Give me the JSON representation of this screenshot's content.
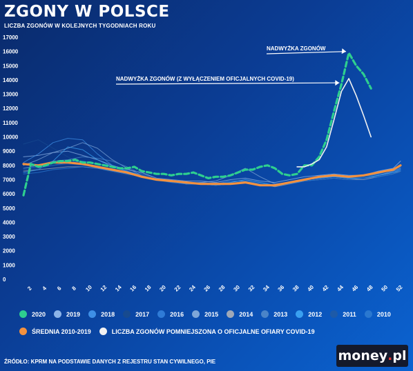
{
  "header": {
    "title": "ZGONY W POLSCE",
    "subtitle": "LICZBA ZGONÓW W KOLEJNYCH TYGODNIACH ROKU"
  },
  "source": "ŹRÓDŁO: KPRM NA PODSTAWIE DANYCH Z REJESTRU STAN CYWILNEGO, PIE",
  "logo": {
    "brand": "money",
    "dot": ".",
    "suffix": "pl"
  },
  "chart_data": {
    "type": "line",
    "ylim": [
      0,
      17000
    ],
    "yticks": [
      0,
      1000,
      2000,
      3000,
      4000,
      5000,
      6000,
      7000,
      8000,
      9000,
      10000,
      11000,
      12000,
      13000,
      14000,
      15000,
      16000,
      17000
    ],
    "xlim": [
      1,
      52
    ],
    "xticks": [
      2,
      4,
      6,
      8,
      10,
      12,
      14,
      16,
      18,
      20,
      22,
      24,
      26,
      28,
      30,
      32,
      34,
      36,
      38,
      40,
      42,
      44,
      46,
      48,
      50,
      52
    ],
    "annotations": [
      {
        "text": "NADWYŻKA ZGONÓW",
        "target_series": "2020",
        "target_week": 45
      },
      {
        "text": "NADWYŻKA ZGONÓW (Z WYŁĄCZENIEM OFICJALNYCH COVID-19)",
        "target_series": "LICZBA ZGONÓW POMNIEJSZONA O OFICJALNE OFIARY COVID-19",
        "target_week": 44
      }
    ],
    "series": [
      {
        "name": "2020",
        "style": "dashed",
        "color": "#2ecf8f",
        "x": [
          1,
          2,
          3,
          4,
          5,
          6,
          7,
          8,
          9,
          10,
          11,
          12,
          13,
          14,
          15,
          16,
          17,
          18,
          19,
          20,
          21,
          22,
          23,
          24,
          25,
          26,
          27,
          28,
          29,
          30,
          31,
          32,
          33,
          34,
          35,
          36,
          37,
          38,
          39,
          40,
          41,
          42,
          43,
          44,
          45,
          46,
          47,
          48
        ],
        "values": [
          5900,
          8100,
          7900,
          8000,
          8200,
          8300,
          8300,
          8400,
          8200,
          8200,
          8100,
          8000,
          7900,
          7800,
          7800,
          7900,
          7600,
          7500,
          7400,
          7400,
          7300,
          7400,
          7400,
          7500,
          7300,
          7100,
          7200,
          7200,
          7300,
          7500,
          7700,
          7700,
          7900,
          8000,
          7800,
          7400,
          7300,
          7400,
          8000,
          8000,
          8600,
          9800,
          11800,
          13700,
          15900,
          15000,
          14400,
          13400
        ]
      },
      {
        "name": "2019",
        "color": "#8cb4e8",
        "x": [
          1,
          3,
          5,
          7,
          9,
          11,
          13,
          15,
          17,
          19,
          21,
          23,
          25,
          27,
          29,
          31,
          33,
          35,
          37,
          39,
          41,
          43,
          45,
          47,
          49,
          51,
          52
        ],
        "values": [
          8600,
          8700,
          8900,
          9000,
          8700,
          8400,
          8000,
          7700,
          7500,
          7100,
          7000,
          6900,
          6900,
          6800,
          7000,
          7100,
          6900,
          6800,
          7000,
          7200,
          7300,
          7400,
          7300,
          7300,
          7600,
          7800,
          8300
        ]
      },
      {
        "name": "2018",
        "color": "#3e8fe6",
        "x": [
          1,
          3,
          5,
          7,
          9,
          11,
          13,
          15,
          17,
          19,
          21,
          23,
          25,
          27,
          29,
          31,
          33,
          35,
          37,
          39,
          41,
          43,
          45,
          47,
          49,
          51,
          52
        ],
        "values": [
          8200,
          8800,
          9600,
          9900,
          9800,
          8800,
          8000,
          7600,
          7200,
          7000,
          6900,
          6800,
          6800,
          6700,
          6900,
          6900,
          6700,
          6600,
          6800,
          7000,
          7200,
          7300,
          7200,
          7200,
          7400,
          7700,
          7900
        ]
      },
      {
        "name": "2017",
        "color": "#174a8f",
        "x": [
          1,
          3,
          5,
          7,
          9,
          11,
          13,
          15,
          17,
          19,
          21,
          23,
          25,
          27,
          29,
          31,
          33,
          35,
          37,
          39,
          41,
          43,
          45,
          47,
          49,
          51,
          52
        ],
        "values": [
          9500,
          9800,
          9200,
          8600,
          8100,
          7800,
          7500,
          7300,
          7100,
          6900,
          6800,
          6700,
          6700,
          6600,
          6700,
          6900,
          6600,
          6500,
          6700,
          6900,
          7000,
          7100,
          7100,
          7200,
          7300,
          7600,
          7800
        ]
      },
      {
        "name": "2016",
        "color": "#2f7bd6",
        "x": [
          1,
          3,
          5,
          7,
          9,
          11,
          13,
          15,
          17,
          19,
          21,
          23,
          25,
          27,
          29,
          31,
          33,
          35,
          37,
          39,
          41,
          43,
          45,
          47,
          49,
          51,
          52
        ],
        "values": [
          7800,
          7900,
          8000,
          8200,
          8300,
          8100,
          7900,
          7600,
          7300,
          7000,
          6800,
          6700,
          6700,
          6600,
          6700,
          6900,
          6700,
          6600,
          6800,
          7000,
          7100,
          7200,
          7100,
          7100,
          7300,
          7500,
          7700
        ]
      },
      {
        "name": "2015",
        "color": "#7ea6d8",
        "x": [
          1,
          3,
          5,
          7,
          9,
          11,
          13,
          15,
          17,
          19,
          21,
          23,
          25,
          27,
          29,
          31,
          33,
          35,
          37,
          39,
          41,
          43,
          45,
          47,
          49,
          51,
          52
        ],
        "values": [
          8000,
          8400,
          8900,
          9200,
          9600,
          9200,
          8400,
          7800,
          7300,
          7000,
          6900,
          6700,
          6800,
          6900,
          7300,
          7800,
          7200,
          6700,
          6800,
          7000,
          7100,
          7200,
          7100,
          7100,
          7300,
          7600,
          7800
        ]
      },
      {
        "name": "2014",
        "color": "#9fa8b8",
        "x": [
          1,
          3,
          5,
          7,
          9,
          11,
          13,
          15,
          17,
          19,
          21,
          23,
          25,
          27,
          29,
          31,
          33,
          35,
          37,
          39,
          41,
          43,
          45,
          47,
          49,
          51,
          52
        ],
        "values": [
          7600,
          7700,
          7800,
          7900,
          7900,
          7800,
          7600,
          7400,
          7200,
          7000,
          6900,
          6700,
          6700,
          6600,
          6700,
          6900,
          6700,
          6500,
          6700,
          6900,
          7000,
          7100,
          7000,
          7000,
          7200,
          7400,
          7600
        ]
      },
      {
        "name": "2013",
        "color": "#4a84c8",
        "x": [
          1,
          3,
          5,
          7,
          9,
          11,
          13,
          15,
          17,
          19,
          21,
          23,
          25,
          27,
          29,
          31,
          33,
          35,
          37,
          39,
          41,
          43,
          45,
          47,
          49,
          51,
          52
        ],
        "values": [
          7800,
          8000,
          8300,
          8400,
          8600,
          8500,
          8300,
          7900,
          7400,
          7100,
          6900,
          6700,
          6700,
          6600,
          6800,
          7000,
          6800,
          6600,
          6800,
          7000,
          7100,
          7200,
          7100,
          7100,
          7300,
          7500,
          7600
        ]
      },
      {
        "name": "2012",
        "color": "#3aa0f0",
        "x": [
          1,
          3,
          5,
          7,
          9,
          11,
          13,
          15,
          17,
          19,
          21,
          23,
          25,
          27,
          29,
          31,
          33,
          35,
          37,
          39,
          41,
          43,
          45,
          47,
          49,
          51,
          52
        ],
        "values": [
          7500,
          7700,
          8300,
          9300,
          9100,
          8400,
          7900,
          7600,
          7300,
          7000,
          6900,
          6800,
          6700,
          6700,
          6800,
          7000,
          6800,
          6600,
          6800,
          7000,
          7100,
          7200,
          7100,
          7100,
          7300,
          7500,
          7700
        ]
      },
      {
        "name": "2011",
        "color": "#1d5aa8",
        "x": [
          1,
          3,
          5,
          7,
          9,
          11,
          13,
          15,
          17,
          19,
          21,
          23,
          25,
          27,
          29,
          31,
          33,
          35,
          37,
          39,
          41,
          43,
          45,
          47,
          49,
          51,
          52
        ],
        "values": [
          7700,
          7800,
          8000,
          8100,
          8000,
          7900,
          7700,
          7500,
          7300,
          7000,
          6900,
          6800,
          6700,
          6600,
          6700,
          6900,
          6700,
          6600,
          6800,
          6900,
          7000,
          7100,
          7000,
          7100,
          7200,
          7400,
          7500
        ]
      },
      {
        "name": "2010",
        "color": "#2a78d0",
        "x": [
          1,
          3,
          5,
          7,
          9,
          11,
          13,
          15,
          17,
          19,
          21,
          23,
          25,
          27,
          29,
          31,
          33,
          35,
          37,
          39,
          41,
          43,
          45,
          47,
          49,
          51,
          52
        ],
        "values": [
          7400,
          7500,
          7700,
          7800,
          7900,
          7800,
          7600,
          7400,
          7200,
          7000,
          6800,
          6700,
          6700,
          6600,
          6700,
          6900,
          6700,
          6600,
          6700,
          6900,
          7000,
          7100,
          7000,
          7100,
          7200,
          7400,
          7600
        ]
      },
      {
        "name": "ŚREDNIA 2010-2019",
        "color": "#f4913f",
        "width": 3.2,
        "x": [
          1,
          3,
          5,
          7,
          9,
          11,
          13,
          15,
          17,
          19,
          21,
          23,
          25,
          27,
          29,
          31,
          33,
          35,
          37,
          39,
          41,
          43,
          45,
          47,
          49,
          51,
          52
        ],
        "values": [
          8100,
          8000,
          8200,
          8200,
          8100,
          7900,
          7700,
          7500,
          7200,
          7000,
          6900,
          6800,
          6700,
          6700,
          6700,
          6800,
          6600,
          6600,
          6800,
          7000,
          7200,
          7300,
          7200,
          7300,
          7500,
          7700,
          8000
        ]
      },
      {
        "name": "LICZBA ZGONÓW POMNIEJSZONA O OFICJALNE OFIARY COVID-19",
        "color": "#f2f2f2",
        "width": 1.6,
        "x": [
          38,
          39,
          40,
          41,
          42,
          43,
          44,
          45,
          46,
          47,
          48
        ],
        "values": [
          7900,
          7900,
          8100,
          8400,
          9300,
          11200,
          13200,
          14100,
          12900,
          11500,
          10000
        ]
      }
    ],
    "legend": {
      "placement": "bottom",
      "row1": [
        {
          "label": "2020",
          "color": "#2ecf8f"
        },
        {
          "label": "2019",
          "color": "#8cb4e8"
        },
        {
          "label": "2018",
          "color": "#3e8fe6"
        },
        {
          "label": "2017",
          "color": "#174a8f"
        },
        {
          "label": "2016",
          "color": "#2f7bd6"
        },
        {
          "label": "2015",
          "color": "#7ea6d8"
        },
        {
          "label": "2014",
          "color": "#9fa8b8"
        },
        {
          "label": "2013",
          "color": "#4a84c8"
        },
        {
          "label": "2012",
          "color": "#3aa0f0"
        },
        {
          "label": "2011",
          "color": "#1d5aa8"
        },
        {
          "label": "2010",
          "color": "#2a78d0"
        }
      ],
      "row2": [
        {
          "label": "ŚREDNIA 2010-2019",
          "color": "#f4913f"
        },
        {
          "label": "LICZBA ZGONÓW POMNIEJSZONA O OFICJALNE OFIARY COVID-19",
          "color": "#f2f2f2"
        }
      ]
    }
  }
}
